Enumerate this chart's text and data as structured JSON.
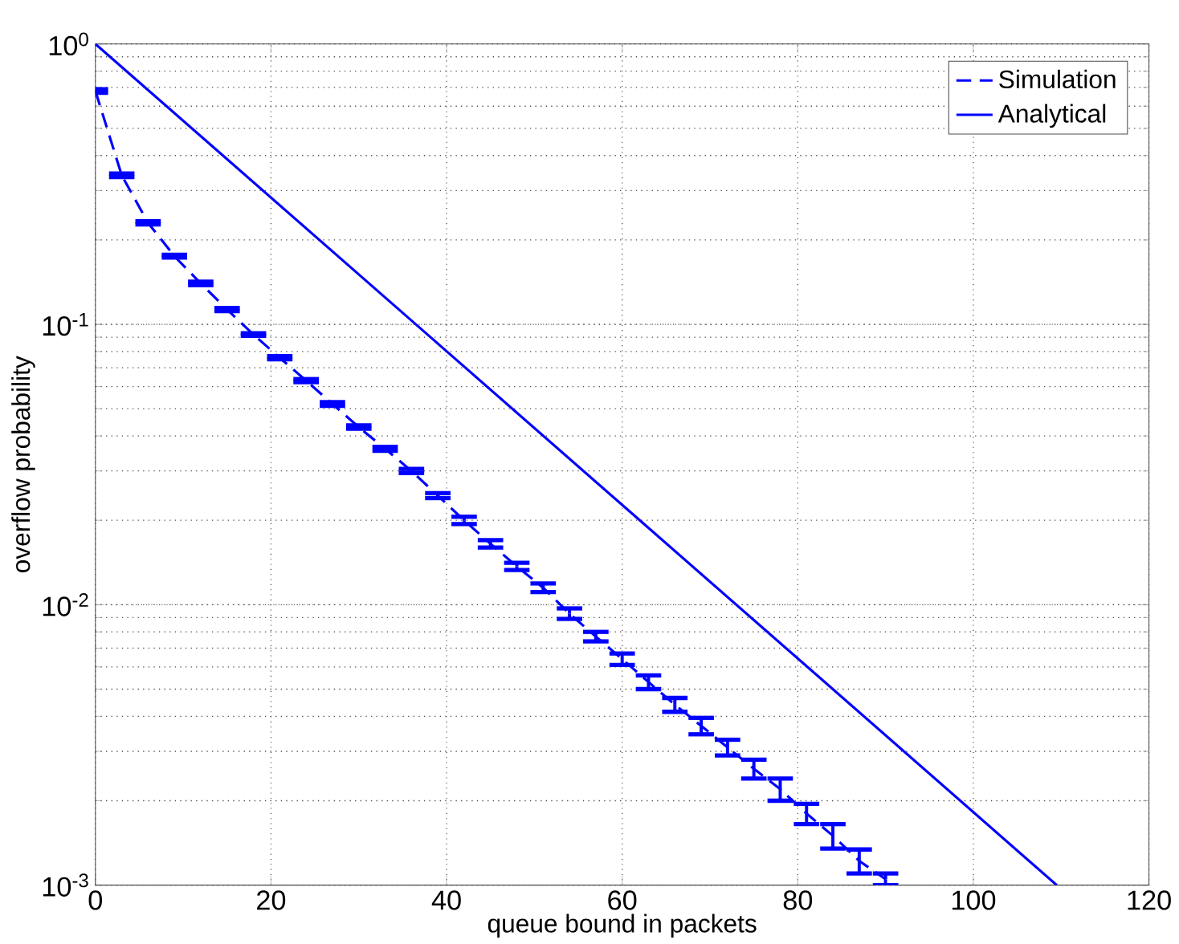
{
  "chart_data": {
    "type": "line",
    "xlabel": "queue bound in packets",
    "ylabel": "overflow probability",
    "xlim": [
      0,
      120
    ],
    "xticks": [
      0,
      20,
      40,
      60,
      80,
      100,
      120
    ],
    "ylim": [
      0.001,
      1
    ],
    "log": "y",
    "yticks": [
      {
        "value": 0.001,
        "label": "10$^{-3}$"
      },
      {
        "value": 0.01,
        "label": "10$^{-2}$"
      },
      {
        "value": 0.1,
        "label": "10$^{-1}$"
      },
      {
        "value": 1,
        "label": "10$^{0}$"
      }
    ],
    "grid": true,
    "legend": "top right",
    "series": [
      {
        "name": "Simulation",
        "color": "#0000ff",
        "line_style": "dashed",
        "x": [
          0,
          3,
          6,
          9,
          12,
          15,
          18,
          21,
          24,
          27,
          30,
          33,
          36,
          39,
          42,
          45,
          48,
          51,
          54,
          57,
          60,
          63,
          66,
          69,
          72,
          75,
          78,
          81,
          84,
          87,
          90
        ],
        "values": [
          0.68,
          0.34,
          0.23,
          0.175,
          0.14,
          0.113,
          0.092,
          0.076,
          0.063,
          0.052,
          0.043,
          0.036,
          0.03,
          0.0245,
          0.02,
          0.0165,
          0.0137,
          0.0115,
          0.0093,
          0.0077,
          0.0064,
          0.0053,
          0.0044,
          0.0037,
          0.0031,
          0.0026,
          0.0022,
          0.0018,
          0.0015,
          0.00122,
          0.00105
        ],
        "errors": [
          0.01,
          0.005,
          0.003,
          0.002,
          0.002,
          0.0015,
          0.001,
          0.001,
          0.0008,
          0.0008,
          0.0006,
          0.0006,
          0.0005,
          0.0005,
          0.0006,
          0.0005,
          0.0004,
          0.0004,
          0.0004,
          0.0003,
          0.0003,
          0.0003,
          0.00025,
          0.00025,
          0.0002,
          0.0002,
          0.0002,
          0.00015,
          0.00015,
          0.00012,
          5e-05
        ]
      },
      {
        "name": "Analytical",
        "color": "#0000ff",
        "line_style": "solid",
        "x": [
          0,
          109.5
        ],
        "values": [
          1,
          0.001
        ]
      }
    ]
  }
}
